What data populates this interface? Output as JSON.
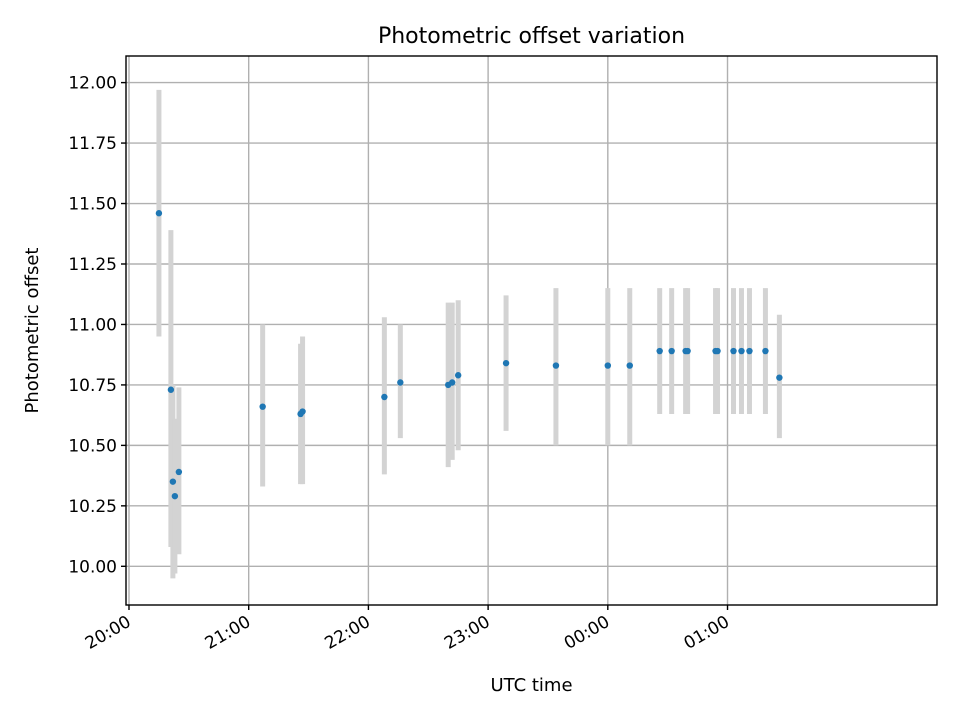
{
  "chart_data": {
    "type": "scatter",
    "title": "Photometric offset variation",
    "xlabel": "UTC time",
    "ylabel": "Photometric offset",
    "grid": true,
    "xlim_minutes": [
      -1.5,
      405
    ],
    "ylim": [
      9.84,
      12.11
    ],
    "xticks": [
      {
        "label": "20:00",
        "minutes": 0
      },
      {
        "label": "21:00",
        "minutes": 60
      },
      {
        "label": "22:00",
        "minutes": 120
      },
      {
        "label": "23:00",
        "minutes": 180
      },
      {
        "label": "00:00",
        "minutes": 240
      },
      {
        "label": "01:00",
        "minutes": 300
      }
    ],
    "yticks": [
      10.0,
      10.25,
      10.5,
      10.75,
      11.0,
      11.25,
      11.5,
      11.75,
      12.0
    ],
    "ytick_labels": [
      "10.00",
      "10.25",
      "10.50",
      "10.75",
      "11.00",
      "11.25",
      "11.50",
      "11.75",
      "12.00"
    ],
    "colors": {
      "points": "#1f77b4",
      "errorbars": "#d3d3d3",
      "grid": "#b0b0b0"
    },
    "points": [
      {
        "time": "20:15",
        "y": 11.46,
        "err_low": 10.95,
        "err_high": 11.97
      },
      {
        "time": "20:21",
        "y": 10.73,
        "err_low": 10.08,
        "err_high": 11.39
      },
      {
        "time": "20:22",
        "y": 10.35,
        "err_low": 9.95,
        "err_high": 10.75
      },
      {
        "time": "20:23",
        "y": 10.29,
        "err_low": 9.97,
        "err_high": 10.61
      },
      {
        "time": "20:25",
        "y": 10.39,
        "err_low": 10.05,
        "err_high": 10.74
      },
      {
        "time": "21:07",
        "y": 10.66,
        "err_low": 10.33,
        "err_high": 11.0
      },
      {
        "time": "21:26",
        "y": 10.63,
        "err_low": 10.34,
        "err_high": 10.92
      },
      {
        "time": "21:27",
        "y": 10.64,
        "err_low": 10.34,
        "err_high": 10.95
      },
      {
        "time": "22:08",
        "y": 10.7,
        "err_low": 10.38,
        "err_high": 11.03
      },
      {
        "time": "22:16",
        "y": 10.76,
        "err_low": 10.53,
        "err_high": 11.0
      },
      {
        "time": "22:40",
        "y": 10.75,
        "err_low": 10.41,
        "err_high": 11.09
      },
      {
        "time": "22:42",
        "y": 10.76,
        "err_low": 10.44,
        "err_high": 11.09
      },
      {
        "time": "22:45",
        "y": 10.79,
        "err_low": 10.48,
        "err_high": 11.1
      },
      {
        "time": "23:09",
        "y": 10.84,
        "err_low": 10.56,
        "err_high": 11.12
      },
      {
        "time": "23:34",
        "y": 10.83,
        "err_low": 10.5,
        "err_high": 11.15
      },
      {
        "time": "00:00",
        "y": 10.83,
        "err_low": 10.5,
        "err_high": 11.15
      },
      {
        "time": "00:11",
        "y": 10.83,
        "err_low": 10.5,
        "err_high": 11.15
      },
      {
        "time": "00:26",
        "y": 10.89,
        "err_low": 10.63,
        "err_high": 11.15
      },
      {
        "time": "00:32",
        "y": 10.89,
        "err_low": 10.63,
        "err_high": 11.15
      },
      {
        "time": "00:39",
        "y": 10.89,
        "err_low": 10.63,
        "err_high": 11.15
      },
      {
        "time": "00:40",
        "y": 10.89,
        "err_low": 10.63,
        "err_high": 11.15
      },
      {
        "time": "00:54",
        "y": 10.89,
        "err_low": 10.63,
        "err_high": 11.15
      },
      {
        "time": "00:55",
        "y": 10.89,
        "err_low": 10.63,
        "err_high": 11.15
      },
      {
        "time": "01:03",
        "y": 10.89,
        "err_low": 10.63,
        "err_high": 11.15
      },
      {
        "time": "01:07",
        "y": 10.89,
        "err_low": 10.63,
        "err_high": 11.15
      },
      {
        "time": "01:11",
        "y": 10.89,
        "err_low": 10.63,
        "err_high": 11.15
      },
      {
        "time": "01:19",
        "y": 10.89,
        "err_low": 10.63,
        "err_high": 11.15
      },
      {
        "time": "01:26",
        "y": 10.78,
        "err_low": 10.53,
        "err_high": 11.04
      }
    ]
  }
}
